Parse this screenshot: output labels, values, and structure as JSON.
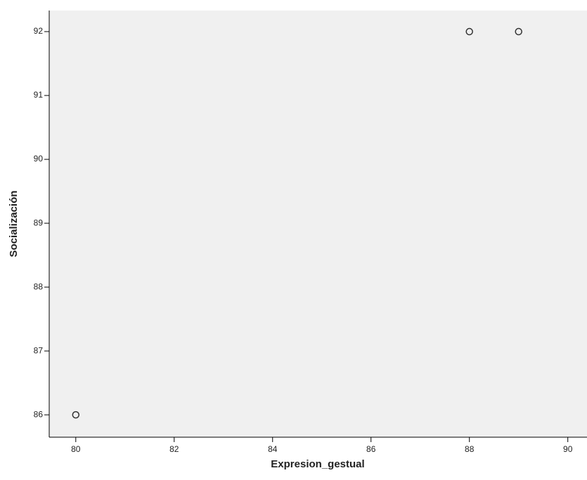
{
  "chart_data": {
    "type": "scatter",
    "x_label": "Expresion_gestual",
    "y_label": "Socialización",
    "series": [
      {
        "color": "#333333",
        "x": [
          80,
          88,
          89
        ],
        "values": [
          86,
          92,
          92
        ]
      }
    ],
    "xlim": [
      79.46,
      90.39
    ],
    "ylim": [
      85.65,
      92.33
    ],
    "xticks": [
      80,
      82,
      84,
      86,
      88,
      90
    ],
    "yticks": [
      86,
      87,
      88,
      89,
      90,
      91,
      92
    ],
    "background": "#f0f0f0"
  }
}
